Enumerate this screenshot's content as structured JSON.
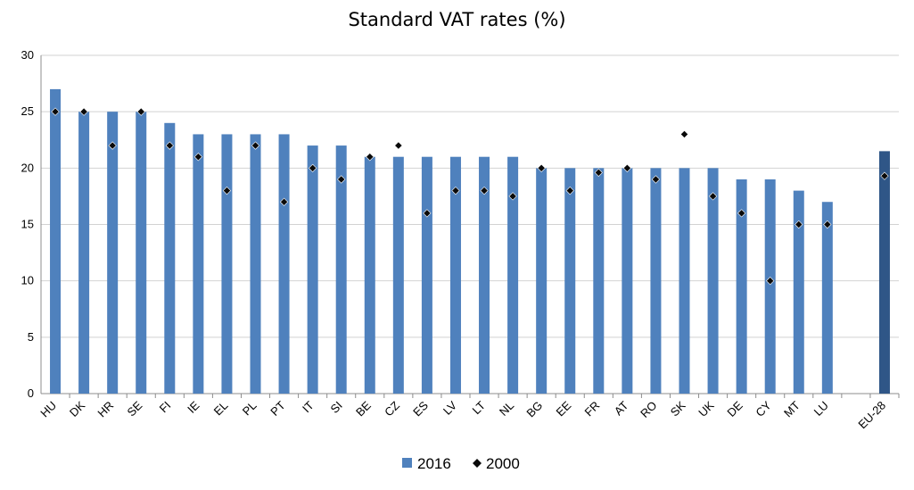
{
  "chart_data": {
    "type": "bar",
    "title": "Standard VAT rates (%)",
    "xlabel": "",
    "ylabel": "",
    "ylim": [
      0,
      30
    ],
    "yticks": [
      0,
      5,
      10,
      15,
      20,
      25,
      30
    ],
    "grid": true,
    "legend_position": "bottom",
    "categories": [
      "HU",
      "DK",
      "HR",
      "SE",
      "FI",
      "IE",
      "EL",
      "PL",
      "PT",
      "IT",
      "SI",
      "BE",
      "CZ",
      "ES",
      "LV",
      "LT",
      "NL",
      "BG",
      "EE",
      "FR",
      "AT",
      "RO",
      "SK",
      "UK",
      "DE",
      "CY",
      "MT",
      "LU",
      "",
      "EU-28"
    ],
    "series": [
      {
        "name": "2016",
        "kind": "bar",
        "color": "#4f81bd",
        "highlight_color": "#2f5687",
        "values": [
          27,
          25,
          25,
          25,
          24,
          23,
          23,
          23,
          23,
          22,
          22,
          21,
          21,
          21,
          21,
          21,
          21,
          20,
          20,
          20,
          20,
          20,
          20,
          20,
          19,
          19,
          18,
          17,
          null,
          21.5
        ]
      },
      {
        "name": "2000",
        "kind": "marker",
        "marker": "diamond",
        "color": "#0a0a0a",
        "values": [
          25,
          25,
          22,
          25,
          22,
          21,
          18,
          22,
          17,
          20,
          19,
          21,
          22,
          16,
          18,
          18,
          17.5,
          20,
          18,
          19.6,
          20,
          19,
          23,
          17.5,
          16,
          10,
          15,
          15,
          null,
          19.3
        ]
      }
    ]
  }
}
